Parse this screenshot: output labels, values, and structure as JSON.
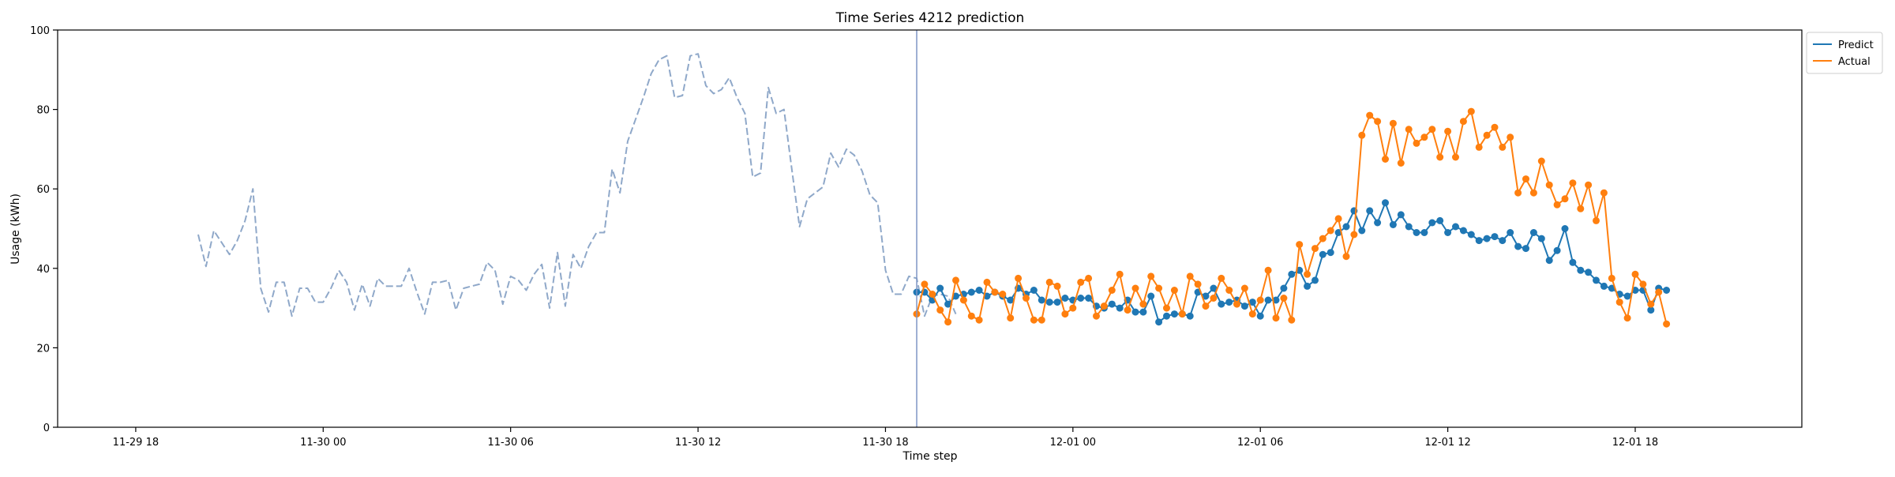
{
  "chart_data": {
    "type": "line",
    "title": "Time Series 4212 prediction",
    "xlabel": "Time step",
    "ylabel": "Usage (kWh)",
    "ylim": [
      0,
      100
    ],
    "yticks": [
      0,
      20,
      40,
      60,
      80,
      100
    ],
    "xlim": [
      "2024-11-29 15:30",
      "2024-12-01 23:20"
    ],
    "xticks": [
      {
        "t": "2024-11-29 18:00",
        "label": "11-29 18"
      },
      {
        "t": "2024-11-30 00:00",
        "label": "11-30 00"
      },
      {
        "t": "2024-11-30 06:00",
        "label": "11-30 06"
      },
      {
        "t": "2024-11-30 12:00",
        "label": "11-30 12"
      },
      {
        "t": "2024-11-30 18:00",
        "label": "11-30 18"
      },
      {
        "t": "2024-12-01 00:00",
        "label": "12-01 00"
      },
      {
        "t": "2024-12-01 06:00",
        "label": "12-01 06"
      },
      {
        "t": "2024-12-01 12:00",
        "label": "12-01 12"
      },
      {
        "t": "2024-12-01 18:00",
        "label": "12-01 18"
      }
    ],
    "interval_minutes": 15,
    "forecast_start": "2024-11-30 19:00",
    "grid": false,
    "legend_position": "top-right",
    "colors": {
      "history": "#8fa8c9",
      "predict": "#1f77b4",
      "actual": "#ff7f0e",
      "forecast_line": "#7f95c4"
    },
    "series": [
      {
        "key": "history",
        "start": "2024-11-29 20:00",
        "style": "dashed",
        "values": [
          48.5,
          40.5,
          49.5,
          46.5,
          43.5,
          47.0,
          52.0,
          60.0,
          35.0,
          29.0,
          36.5,
          36.5,
          28.0,
          35.0,
          35.0,
          31.5,
          31.5,
          35.0,
          39.5,
          36.5,
          29.5,
          36.0,
          30.5,
          37.5,
          35.5,
          35.5,
          35.5,
          40.0,
          34.0,
          28.5,
          36.5,
          36.5,
          37.0,
          29.5,
          35.0,
          35.5,
          36.0,
          41.5,
          39.5,
          31.0,
          38.0,
          37.0,
          34.5,
          38.5,
          41.0,
          30.0,
          44.0,
          30.5,
          43.5,
          40.0,
          45.5,
          49.0,
          49.0,
          65.0,
          59.0,
          72.0,
          77.5,
          83.0,
          89.0,
          92.5,
          93.5,
          83.0,
          83.5,
          93.5,
          94.0,
          86.0,
          84.0,
          85.0,
          88.0,
          83.0,
          79.0,
          63.0,
          64.0,
          85.5,
          79.0,
          80.0,
          65.0,
          50.5,
          57.5,
          59.0,
          60.5,
          69.0,
          65.5,
          70.0,
          68.5,
          64.5,
          58.5,
          56.5,
          39.5,
          33.5,
          33.5,
          38.0,
          37.5,
          28.0,
          33.0,
          33.5,
          33.0,
          28.5
        ]
      },
      {
        "key": "predict",
        "name": "Predict",
        "start": "2024-11-30 19:00",
        "style": "solid-markers",
        "values": [
          34.0,
          34.0,
          32.0,
          35.0,
          31.0,
          33.0,
          33.5,
          34.0,
          34.5,
          33.0,
          34.0,
          33.0,
          32.0,
          35.0,
          33.5,
          34.5,
          32.0,
          31.5,
          31.5,
          32.5,
          32.0,
          32.5,
          32.5,
          30.5,
          30.0,
          31.0,
          30.0,
          32.0,
          29.0,
          29.0,
          33.0,
          26.5,
          28.0,
          28.5,
          28.5,
          28.0,
          34.0,
          33.0,
          35.0,
          31.0,
          31.5,
          32.0,
          30.5,
          31.5,
          28.0,
          32.0,
          32.0,
          35.0,
          38.5,
          39.5,
          35.5,
          37.0,
          43.5,
          44.0,
          49.0,
          50.5,
          54.5,
          49.5,
          54.5,
          51.5,
          56.5,
          51.0,
          53.5,
          50.5,
          49.0,
          49.0,
          51.5,
          52.0,
          49.0,
          50.5,
          49.5,
          48.5,
          47.0,
          47.5,
          48.0,
          47.0,
          49.0,
          45.5,
          45.0,
          49.0,
          47.5,
          42.0,
          44.5,
          50.0,
          41.5,
          39.5,
          39.0,
          37.0,
          35.5,
          35.0,
          33.5,
          33.0,
          34.5,
          34.5,
          29.5,
          35.0,
          34.5
        ]
      },
      {
        "key": "actual",
        "name": "Actual",
        "start": "2024-11-30 19:00",
        "style": "solid-markers",
        "values": [
          28.5,
          36.0,
          33.5,
          29.5,
          26.5,
          37.0,
          32.0,
          28.0,
          27.0,
          36.5,
          34.0,
          33.5,
          27.5,
          37.5,
          32.5,
          27.0,
          27.0,
          36.5,
          35.5,
          28.5,
          30.0,
          36.5,
          37.5,
          28.0,
          30.5,
          34.5,
          38.5,
          29.5,
          35.0,
          31.0,
          38.0,
          35.0,
          30.0,
          34.5,
          28.5,
          38.0,
          36.0,
          30.5,
          32.5,
          37.5,
          34.5,
          31.0,
          35.0,
          28.5,
          32.0,
          39.5,
          27.5,
          32.5,
          27.0,
          46.0,
          38.5,
          45.0,
          47.5,
          49.5,
          52.5,
          43.0,
          48.5,
          73.5,
          78.5,
          77.0,
          67.5,
          76.5,
          66.5,
          75.0,
          71.5,
          73.0,
          75.0,
          68.0,
          74.5,
          68.0,
          77.0,
          79.5,
          70.5,
          73.5,
          75.5,
          70.5,
          73.0,
          59.0,
          62.5,
          59.0,
          67.0,
          61.0,
          56.0,
          57.5,
          61.5,
          55.0,
          61.0,
          52.0,
          59.0,
          37.5,
          31.5,
          27.5,
          38.5,
          36.0,
          31.0,
          34.0,
          26.0
        ]
      }
    ]
  }
}
